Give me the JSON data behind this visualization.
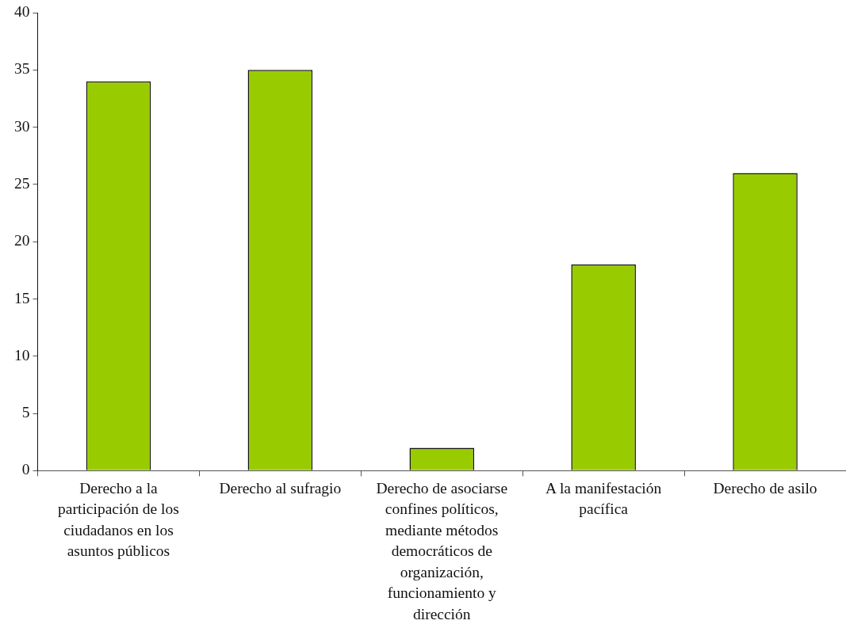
{
  "chart_data": {
    "type": "bar",
    "categories": [
      "Derecho a la participación de los ciudadanos en los asuntos públicos",
      "Derecho al sufragio",
      "Derecho de asociarse confines políticos, mediante métodos democráticos de organización, funcionamiento y dirección",
      "A la manifestación pacífica",
      "Derecho de asilo"
    ],
    "values": [
      34,
      35,
      2,
      18,
      26
    ],
    "color": "#99cc00",
    "ylim": [
      0,
      40
    ],
    "yticks": [
      0,
      5,
      10,
      15,
      20,
      25,
      30,
      35,
      40
    ]
  }
}
